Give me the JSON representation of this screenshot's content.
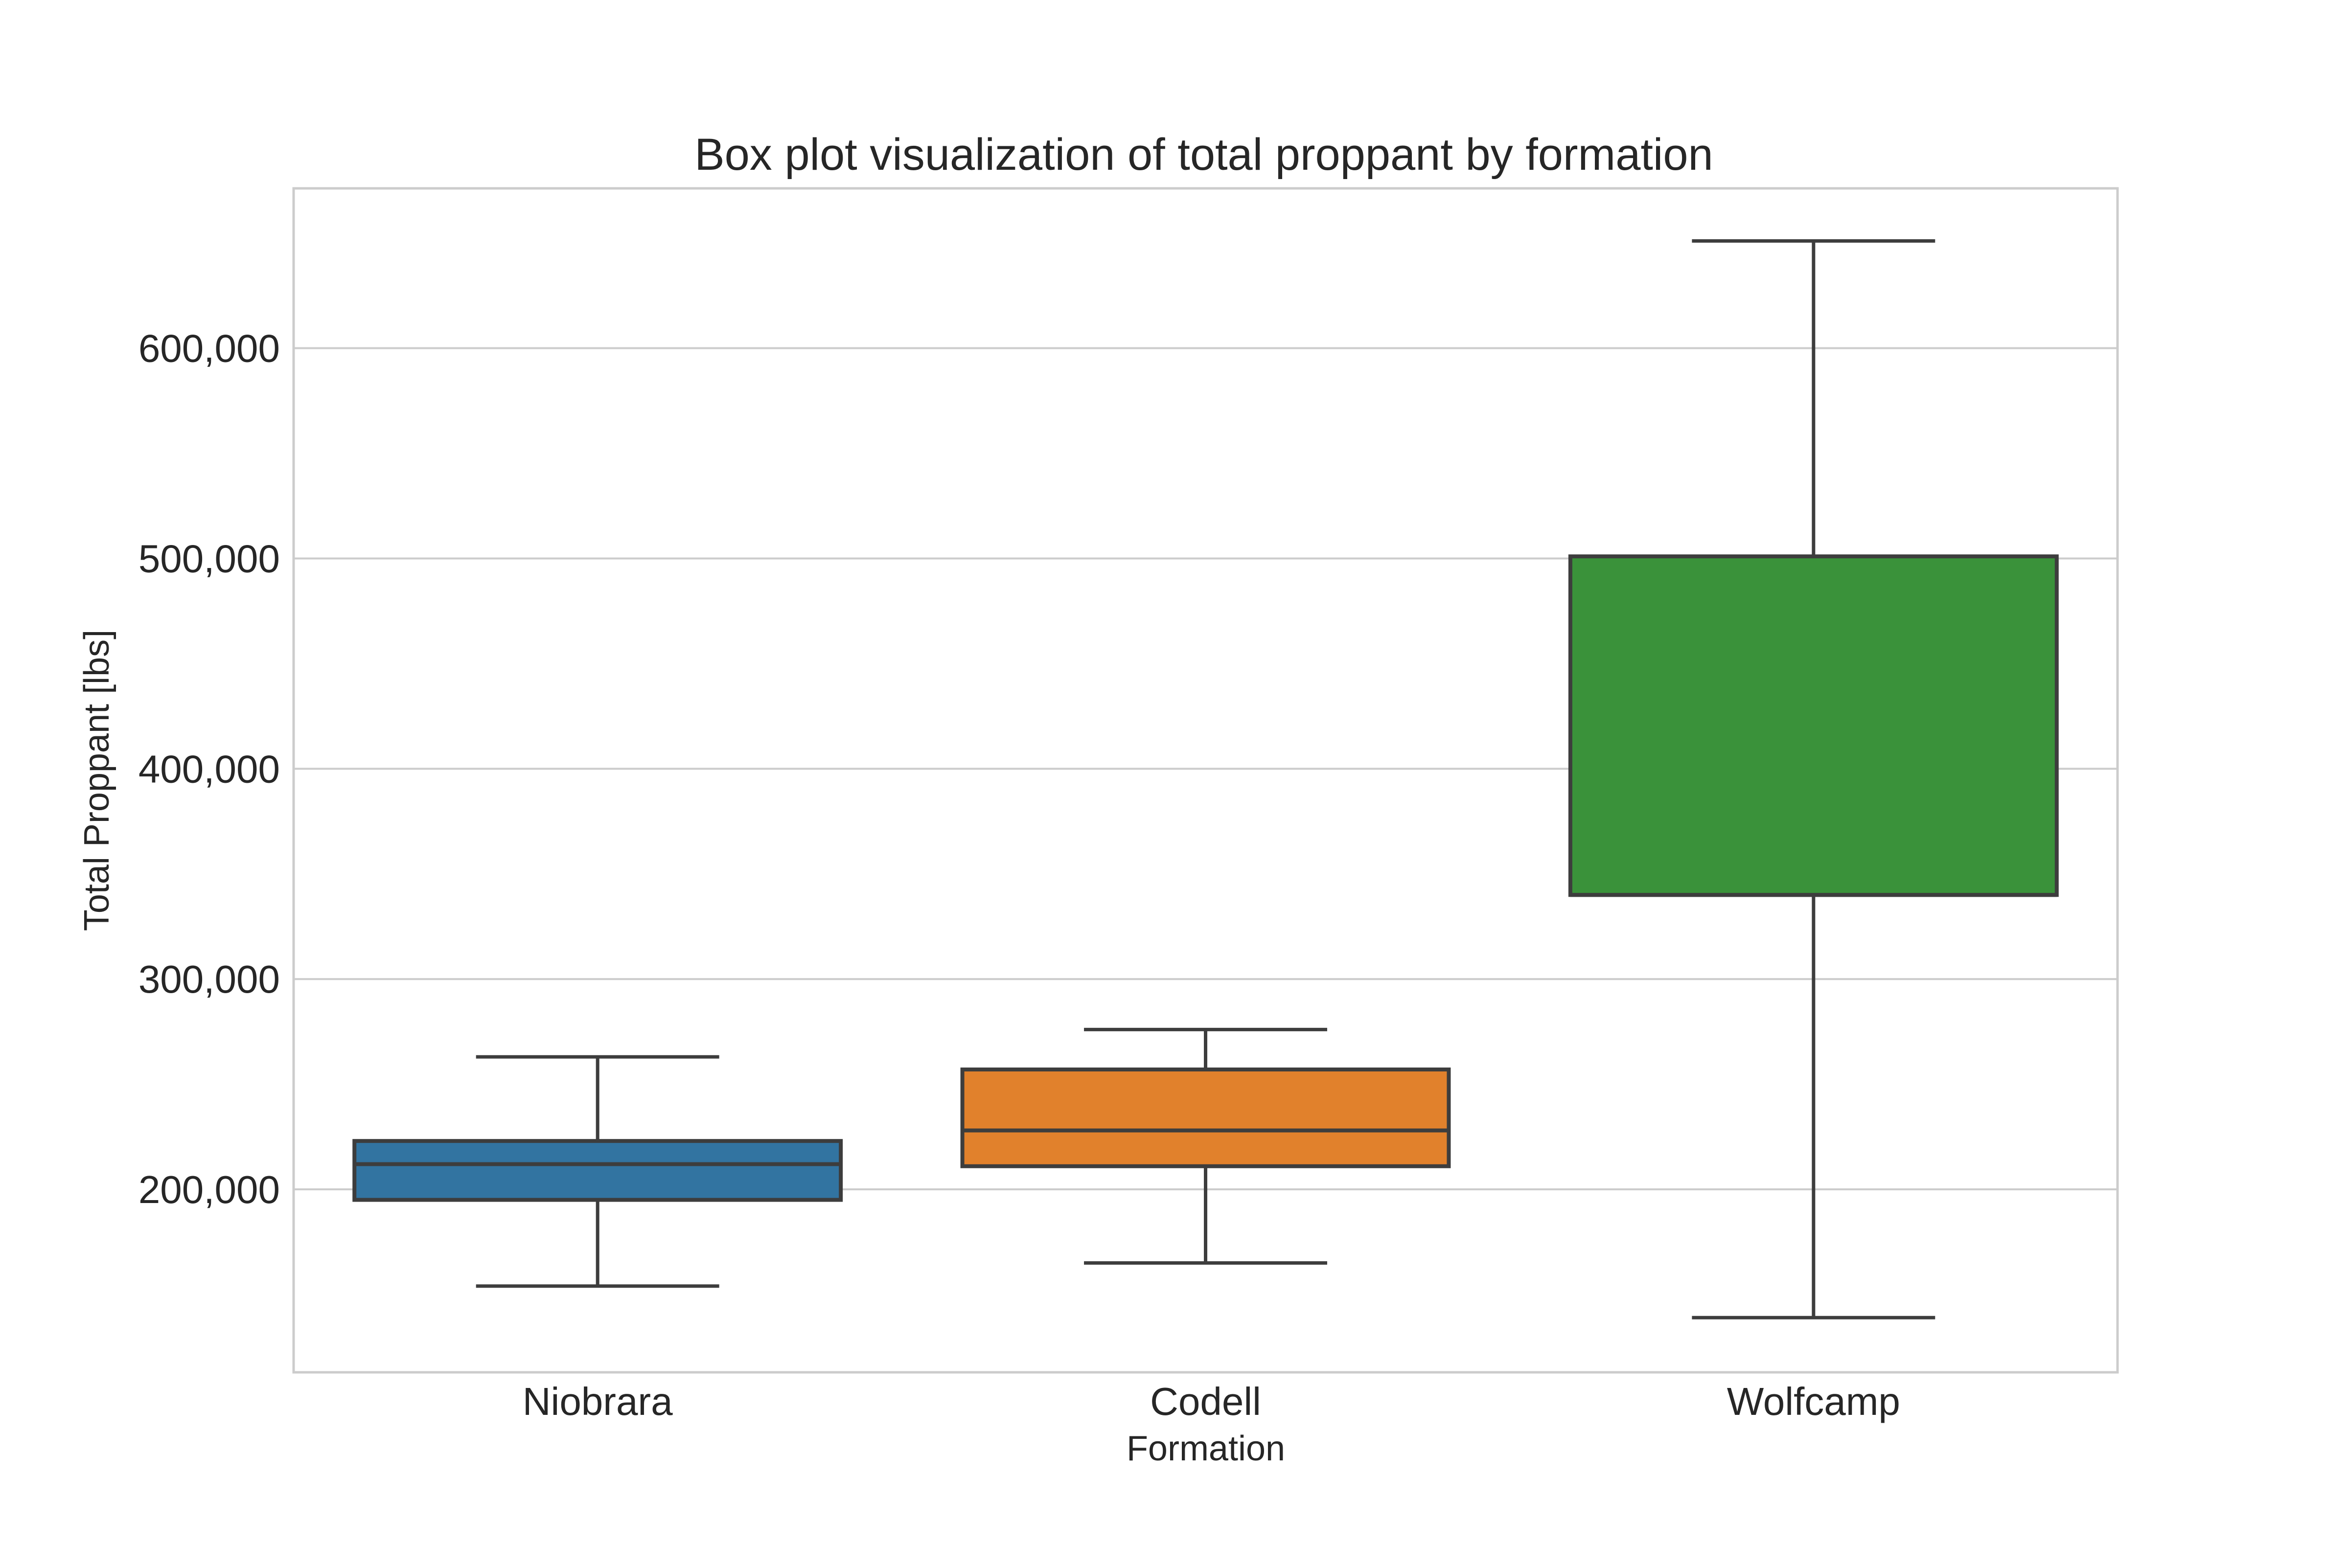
{
  "chart_data": {
    "type": "box",
    "title": "Box plot visualization of total proppant by formation",
    "xlabel": "Formation",
    "ylabel": "Total Proppant [lbs]",
    "ylim": [
      113000,
      676000
    ],
    "yticks": [
      200000,
      300000,
      400000,
      500000,
      600000
    ],
    "ytick_labels": [
      "200,000",
      "300,000",
      "400,000",
      "500,000",
      "600,000"
    ],
    "grid": true,
    "categories": [
      "Niobrara",
      "Codell",
      "Wolfcamp"
    ],
    "boxes": [
      {
        "category": "Niobrara",
        "whisker_low": 154000,
        "q1": 195000,
        "median": 212000,
        "q3": 223000,
        "whisker_high": 263000,
        "color": "#3274a1"
      },
      {
        "category": "Codell",
        "whisker_low": 165000,
        "q1": 211000,
        "median": 228000,
        "q3": 257000,
        "whisker_high": 276000,
        "color": "#e1812c"
      },
      {
        "category": "Wolfcamp",
        "whisker_low": 139000,
        "q1": 340000,
        "median": 340000,
        "q3": 501000,
        "whisker_high": 651000,
        "color": "#3a923a"
      }
    ],
    "line_color": "#3d3d3d",
    "grid_color": "#cccccc"
  }
}
